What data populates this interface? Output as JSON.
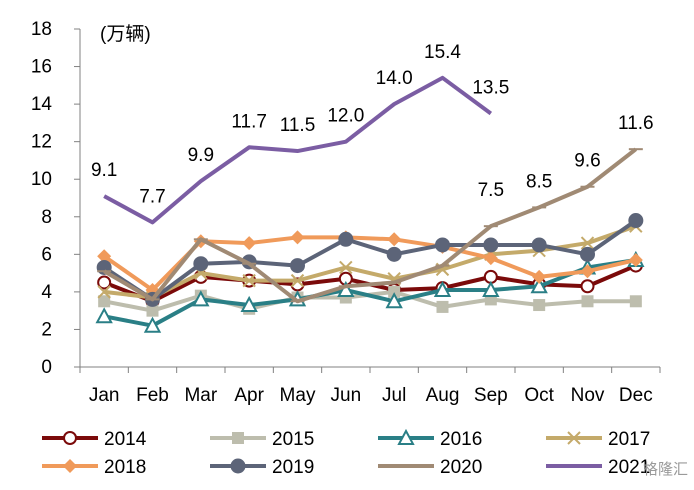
{
  "chart_data": {
    "type": "line",
    "unit_label": "(万辆)",
    "categories": [
      "Jan",
      "Feb",
      "Mar",
      "Apr",
      "May",
      "Jun",
      "Jul",
      "Aug",
      "Sep",
      "Oct",
      "Nov",
      "Dec"
    ],
    "ylim": [
      0,
      18
    ],
    "yticks": [
      "0",
      "2",
      "4",
      "6",
      "8",
      "10",
      "12",
      "14",
      "16",
      "18"
    ],
    "grid": false,
    "legend_position": "bottom",
    "series": [
      {
        "name": "2014",
        "color": "#7b0a0a",
        "marker": "circle-open",
        "values": [
          4.5,
          3.5,
          4.8,
          4.6,
          4.4,
          4.7,
          4.1,
          4.2,
          4.8,
          4.4,
          4.3,
          5.4
        ]
      },
      {
        "name": "2015",
        "color": "#bdbdad",
        "marker": "square",
        "values": [
          3.5,
          3.0,
          3.8,
          3.1,
          3.7,
          3.7,
          4.0,
          3.2,
          3.6,
          3.3,
          3.5,
          3.5
        ]
      },
      {
        "name": "2016",
        "color": "#2a7f86",
        "marker": "triangle-open",
        "values": [
          2.7,
          2.2,
          3.6,
          3.3,
          3.6,
          4.1,
          3.5,
          4.1,
          4.1,
          4.3,
          5.3,
          5.7
        ]
      },
      {
        "name": "2017",
        "color": "#c4aa6a",
        "marker": "x",
        "values": [
          4.0,
          3.7,
          5.0,
          4.6,
          4.6,
          5.3,
          4.7,
          5.2,
          6.0,
          6.2,
          6.6,
          7.5
        ]
      },
      {
        "name": "2018",
        "color": "#f09a5a",
        "marker": "diamond",
        "values": [
          5.9,
          4.1,
          6.7,
          6.6,
          6.9,
          6.9,
          6.8,
          6.4,
          5.8,
          4.8,
          5.1,
          5.7
        ]
      },
      {
        "name": "2019",
        "color": "#5c6478",
        "marker": "circle",
        "values": [
          5.3,
          3.6,
          5.5,
          5.6,
          5.4,
          6.8,
          6.0,
          6.5,
          6.5,
          6.5,
          6.0,
          7.8
        ]
      },
      {
        "name": "2020",
        "color": "#a08a74",
        "marker": "dash",
        "values": [
          5.1,
          3.6,
          6.8,
          5.5,
          3.5,
          4.3,
          4.5,
          5.4,
          7.5,
          8.5,
          9.6,
          11.6
        ]
      },
      {
        "name": "2021",
        "color": "#7b5da3",
        "marker": "none",
        "values": [
          9.1,
          7.7,
          9.9,
          11.7,
          11.5,
          12.0,
          14.0,
          15.4,
          13.5,
          null,
          null,
          null
        ]
      }
    ],
    "data_labels": [
      {
        "series": "2021",
        "index": 0,
        "text": "9.1"
      },
      {
        "series": "2021",
        "index": 1,
        "text": "7.7"
      },
      {
        "series": "2021",
        "index": 2,
        "text": "9.9"
      },
      {
        "series": "2021",
        "index": 3,
        "text": "11.7"
      },
      {
        "series": "2021",
        "index": 4,
        "text": "11.5"
      },
      {
        "series": "2021",
        "index": 5,
        "text": "12.0"
      },
      {
        "series": "2021",
        "index": 6,
        "text": "14.0"
      },
      {
        "series": "2021",
        "index": 7,
        "text": "15.4"
      },
      {
        "series": "2021",
        "index": 8,
        "text": "13.5"
      },
      {
        "series": "2020",
        "index": 9,
        "text": "8.5"
      },
      {
        "series": "2020",
        "index": 10,
        "text": "9.6"
      },
      {
        "series": "2020",
        "index": 11,
        "text": "11.6"
      }
    ],
    "extra_labels": [
      {
        "text": "7.5",
        "x_index": 8,
        "y": 9.1
      }
    ]
  },
  "watermark": "格隆汇"
}
